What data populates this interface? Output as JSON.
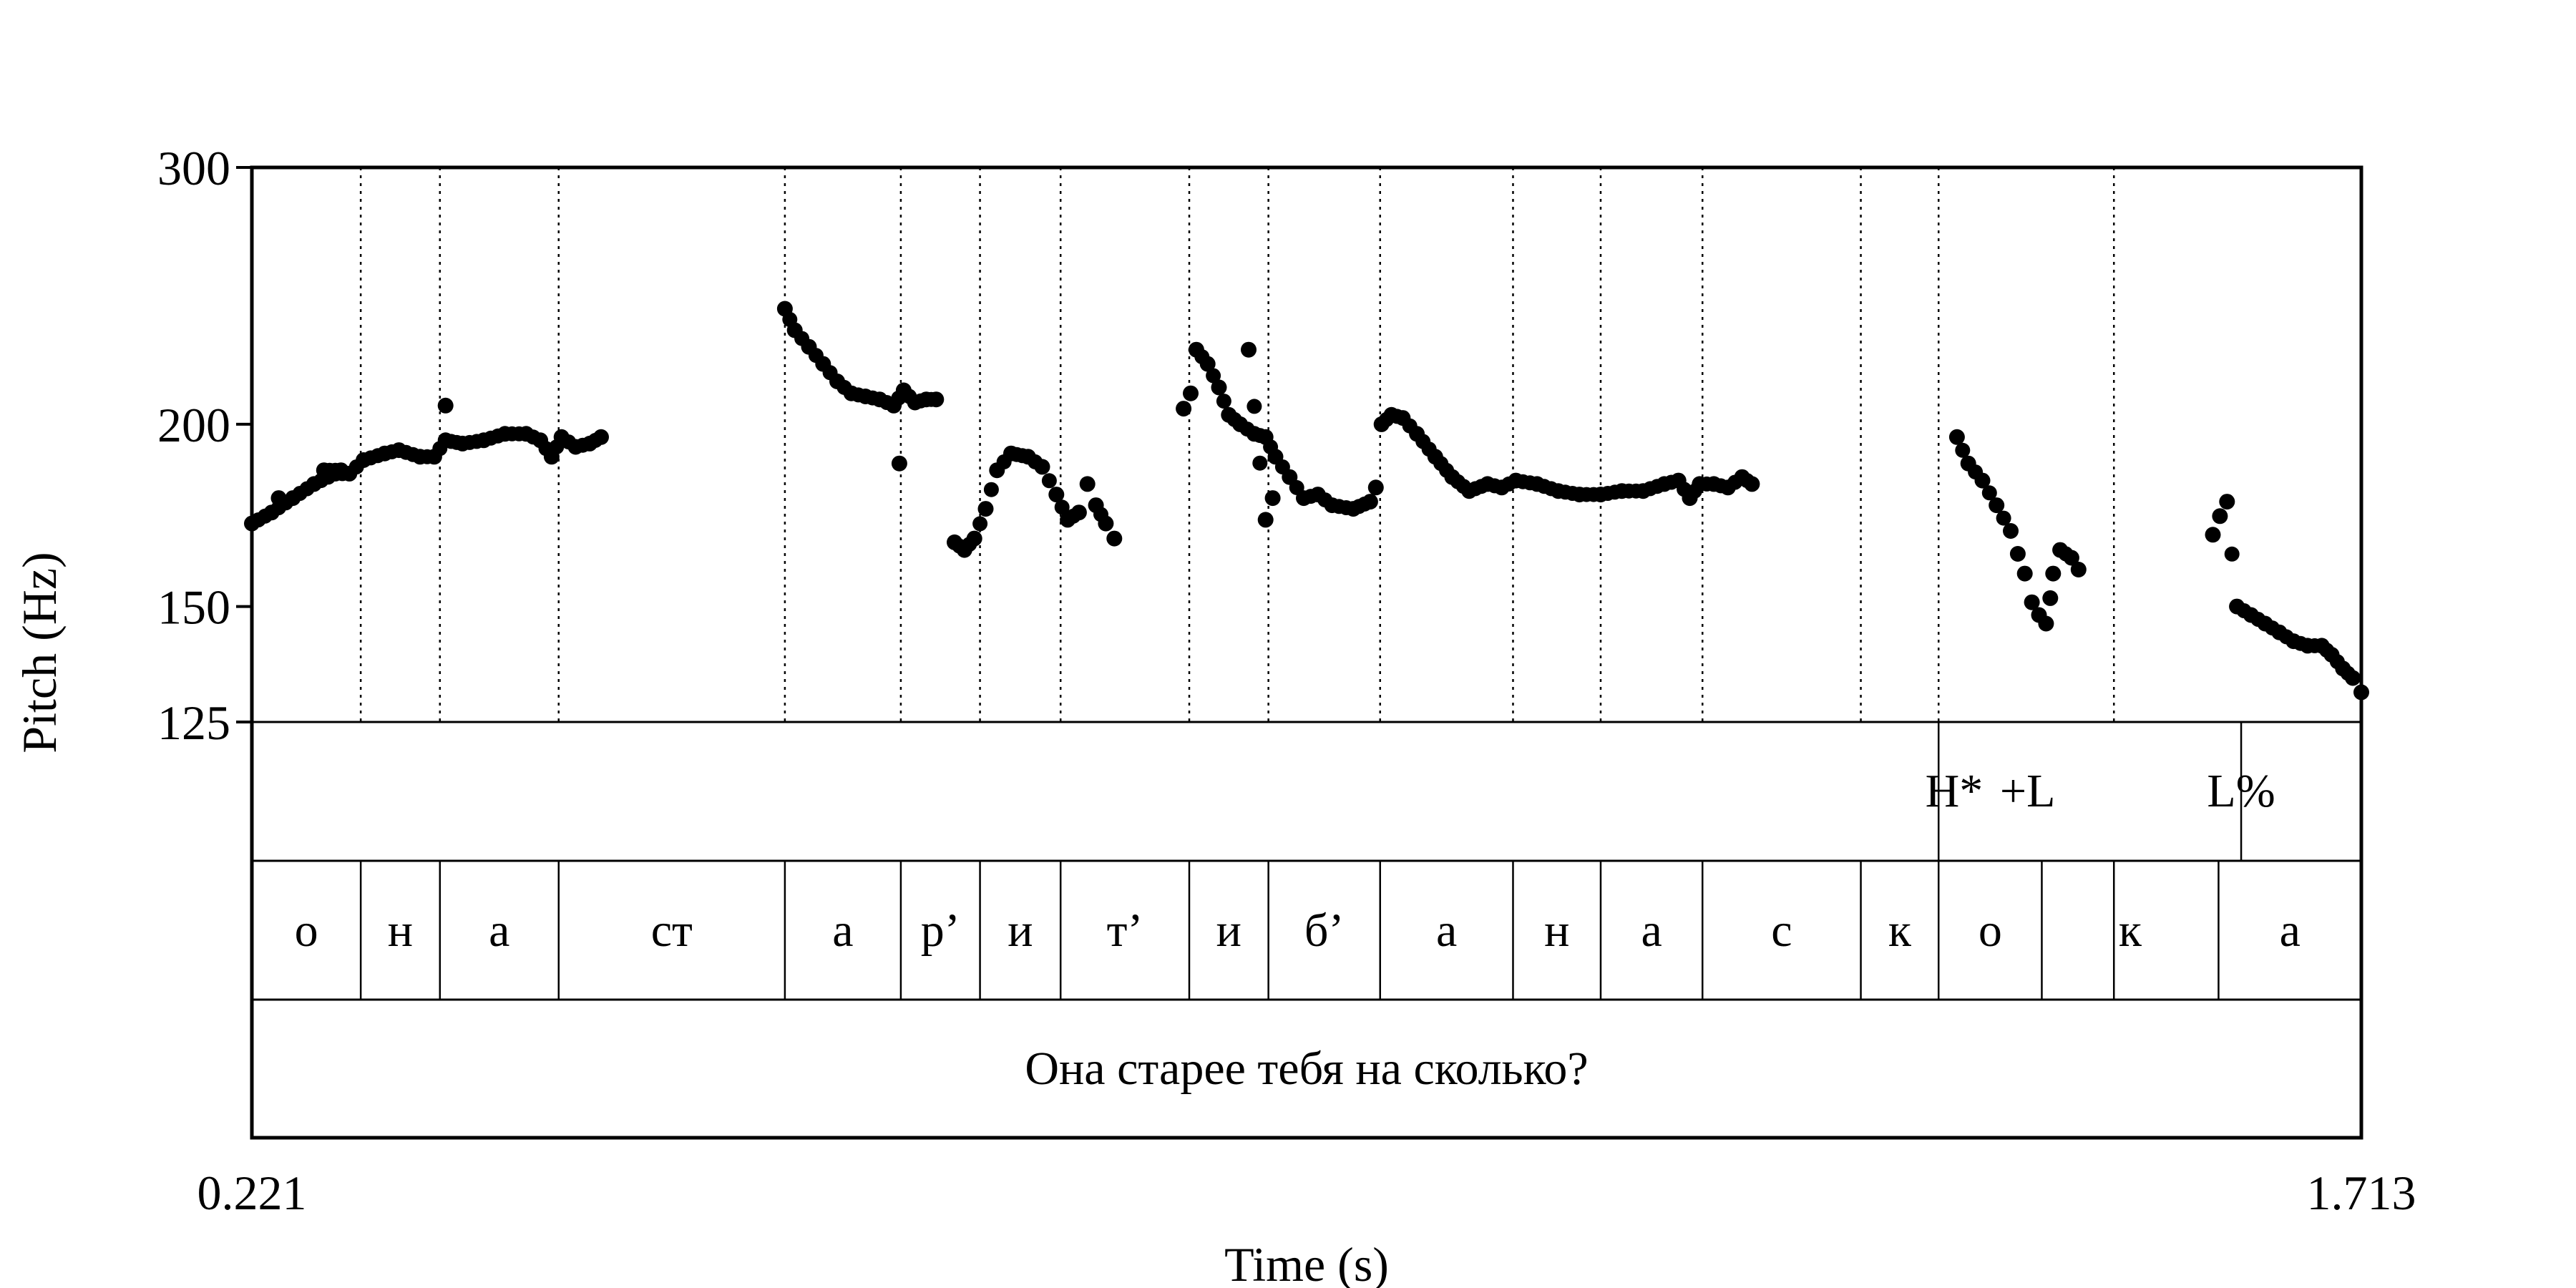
{
  "chart_data": {
    "type": "scatter",
    "xlabel": "Time (s)",
    "ylabel": "Pitch (Hz)",
    "xlim": [
      0.221,
      1.713
    ],
    "ylim": [
      125,
      300
    ],
    "y_scale": "log",
    "x_tick_labels": [
      "0.221",
      "1.713"
    ],
    "y_ticks": [
      125,
      150,
      200,
      300
    ],
    "y_tick_labels": [
      "125",
      "150",
      "200",
      "300"
    ],
    "grid": false,
    "boundaries": [
      0.298,
      0.354,
      0.438,
      0.598,
      0.68,
      0.736,
      0.793,
      0.884,
      0.94,
      1.019,
      1.113,
      1.175,
      1.247,
      1.359,
      1.414,
      1.538
    ],
    "tone_tier": [
      {
        "time": 1.425,
        "label": "H*"
      },
      {
        "time": 1.477,
        "label": "+L"
      },
      {
        "time": 1.628,
        "label": "L%"
      }
    ],
    "tone_points": [
      1.414,
      1.628
    ],
    "segment_tier": [
      {
        "start": 0.221,
        "end": 0.298,
        "label": "о"
      },
      {
        "start": 0.298,
        "end": 0.354,
        "label": "н"
      },
      {
        "start": 0.354,
        "end": 0.438,
        "label": "а"
      },
      {
        "start": 0.438,
        "end": 0.598,
        "label": "ст"
      },
      {
        "start": 0.598,
        "end": 0.68,
        "label": "а"
      },
      {
        "start": 0.68,
        "end": 0.736,
        "label": "р’"
      },
      {
        "start": 0.736,
        "end": 0.793,
        "label": "и"
      },
      {
        "start": 0.793,
        "end": 0.884,
        "label": "т’"
      },
      {
        "start": 0.884,
        "end": 0.94,
        "label": "и"
      },
      {
        "start": 0.94,
        "end": 1.019,
        "label": "б’"
      },
      {
        "start": 1.019,
        "end": 1.113,
        "label": "а"
      },
      {
        "start": 1.113,
        "end": 1.175,
        "label": "н"
      },
      {
        "start": 1.175,
        "end": 1.247,
        "label": "а"
      },
      {
        "start": 1.247,
        "end": 1.359,
        "label": "с"
      },
      {
        "start": 1.359,
        "end": 1.414,
        "label": "к"
      },
      {
        "start": 1.414,
        "end": 1.487,
        "label": "о"
      },
      {
        "start": 1.487,
        "end": 1.612,
        "label": "к"
      },
      {
        "start": 1.612,
        "end": 1.713,
        "label": "а"
      }
    ],
    "sentence_tier": "Она старее тебя на сколько?",
    "pitch_segments": [
      {
        "points": [
          [
            0.221,
            171
          ],
          [
            0.235,
            174
          ],
          [
            0.25,
            178
          ],
          [
            0.265,
            182
          ],
          [
            0.28,
            185
          ],
          [
            0.29,
            185
          ],
          [
            0.3,
            189
          ],
          [
            0.315,
            191
          ],
          [
            0.325,
            192
          ],
          [
            0.34,
            190
          ],
          [
            0.35,
            190
          ],
          [
            0.358,
            195
          ],
          [
            0.37,
            194
          ],
          [
            0.385,
            195
          ],
          [
            0.4,
            197
          ],
          [
            0.415,
            197
          ],
          [
            0.425,
            195
          ],
          [
            0.433,
            190
          ],
          [
            0.44,
            196
          ],
          [
            0.45,
            193
          ],
          [
            0.46,
            194
          ],
          [
            0.468,
            196
          ]
        ]
      },
      {
        "points": [
          [
            0.358,
            206
          ],
          [
            0.272,
            186
          ],
          [
            0.284,
            186
          ],
          [
            0.24,
            178
          ]
        ]
      },
      {
        "points": [
          [
            0.598,
            240
          ],
          [
            0.605,
            232
          ],
          [
            0.615,
            226
          ],
          [
            0.625,
            220
          ],
          [
            0.635,
            214
          ],
          [
            0.645,
            210
          ],
          [
            0.655,
            209
          ],
          [
            0.665,
            208
          ],
          [
            0.675,
            206
          ],
          [
            0.682,
            211
          ],
          [
            0.69,
            207
          ],
          [
            0.698,
            208
          ],
          [
            0.705,
            208
          ]
        ]
      },
      {
        "points": [
          [
            0.679,
            188
          ]
        ]
      },
      {
        "points": [
          [
            0.718,
            166
          ],
          [
            0.725,
            164
          ],
          [
            0.732,
            167
          ],
          [
            0.74,
            175
          ],
          [
            0.748,
            186
          ],
          [
            0.758,
            191
          ],
          [
            0.77,
            190
          ],
          [
            0.78,
            187
          ],
          [
            0.79,
            179
          ],
          [
            0.798,
            172
          ],
          [
            0.806,
            174
          ],
          [
            0.812,
            182
          ],
          [
            0.818,
            176
          ],
          [
            0.825,
            171
          ],
          [
            0.831,
            167
          ]
        ]
      },
      {
        "points": [
          [
            0.88,
            205
          ],
          [
            0.885,
            210
          ],
          [
            0.889,
            225
          ],
          [
            0.897,
            220
          ],
          [
            0.905,
            212
          ],
          [
            0.912,
            203
          ],
          [
            0.92,
            200
          ],
          [
            0.93,
            197
          ],
          [
            0.938,
            196
          ],
          [
            0.945,
            190
          ],
          [
            0.955,
            184
          ],
          [
            0.965,
            178
          ],
          [
            0.975,
            179
          ],
          [
            0.985,
            176
          ],
          [
            1.0,
            175
          ],
          [
            1.012,
            177
          ],
          [
            1.016,
            181
          ]
        ]
      },
      {
        "points": [
          [
            0.926,
            225
          ],
          [
            0.938,
            172
          ],
          [
            0.943,
            178
          ]
        ]
      },
      {
        "points": [
          [
            1.02,
            200
          ],
          [
            1.027,
            203
          ],
          [
            1.035,
            202
          ],
          [
            1.045,
            197
          ],
          [
            1.058,
            190
          ],
          [
            1.07,
            184
          ],
          [
            1.082,
            180
          ],
          [
            1.095,
            182
          ],
          [
            1.105,
            181
          ],
          [
            1.115,
            183
          ],
          [
            1.13,
            182
          ],
          [
            1.145,
            180
          ],
          [
            1.16,
            179
          ],
          [
            1.175,
            179
          ],
          [
            1.19,
            180
          ],
          [
            1.205,
            180
          ],
          [
            1.22,
            182
          ],
          [
            1.23,
            183
          ],
          [
            1.238,
            178
          ],
          [
            1.245,
            182
          ],
          [
            1.255,
            182
          ],
          [
            1.265,
            181
          ],
          [
            1.275,
            184
          ],
          [
            1.282,
            182
          ]
        ]
      },
      {
        "points": [
          [
            1.427,
            196
          ],
          [
            1.435,
            188
          ],
          [
            1.445,
            183
          ],
          [
            1.455,
            176
          ],
          [
            1.465,
            169
          ],
          [
            1.47,
            163
          ],
          [
            1.475,
            158
          ],
          [
            1.48,
            151
          ],
          [
            1.485,
            148
          ],
          [
            1.49,
            146
          ],
          [
            1.493,
            152
          ]
        ]
      },
      {
        "points": [
          [
            1.495,
            158
          ],
          [
            1.5,
            164
          ],
          [
            1.508,
            162
          ],
          [
            1.513,
            159
          ]
        ]
      },
      {
        "points": [
          [
            1.608,
            168
          ],
          [
            1.613,
            173
          ],
          [
            1.618,
            177
          ],
          [
            1.625,
            150
          ],
          [
            1.635,
            148
          ],
          [
            1.645,
            146
          ],
          [
            1.655,
            144
          ],
          [
            1.665,
            142
          ],
          [
            1.675,
            141
          ],
          [
            1.685,
            141
          ],
          [
            1.692,
            139
          ],
          [
            1.7,
            136
          ],
          [
            1.707,
            134
          ],
          [
            1.713,
            131
          ]
        ]
      }
    ]
  }
}
